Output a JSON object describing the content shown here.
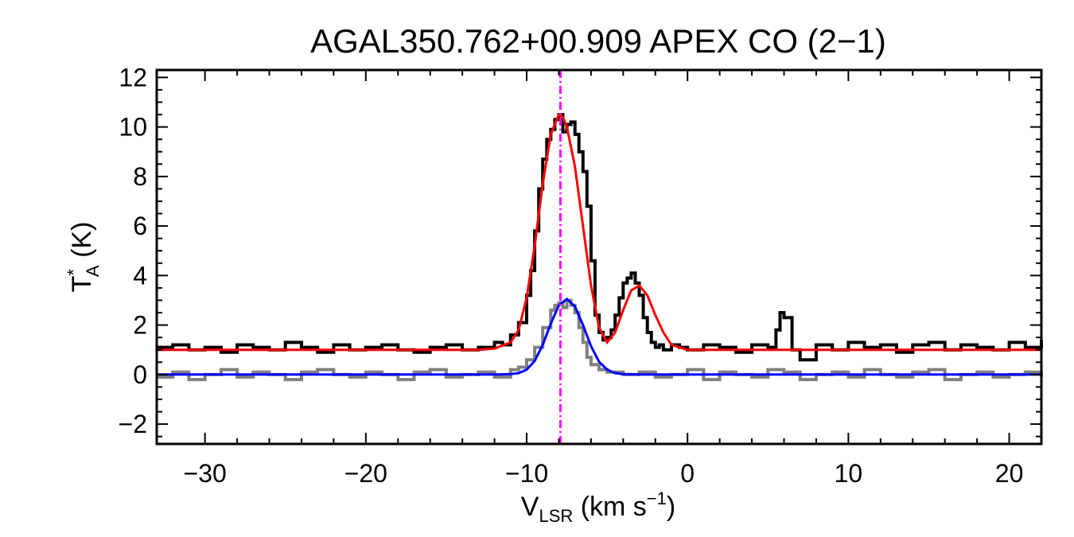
{
  "chart_data": {
    "type": "line",
    "title": "AGAL350.762+00.909  APEX CO (2−1)",
    "xlabel": {
      "main": "V",
      "sub": "LSR",
      "units": " (km s",
      "sup": "−1",
      "close": ")"
    },
    "ylabel": {
      "main": "T",
      "sup": "*",
      "sub": "A",
      "units": " (K)"
    },
    "xlim": [
      -33,
      22
    ],
    "ylim": [
      -2.8,
      12.3
    ],
    "xticks": [
      -30,
      -20,
      -10,
      0,
      10,
      20
    ],
    "xtick_labels": [
      "−30",
      "−20",
      "−10",
      "0",
      "10",
      "20"
    ],
    "yticks": [
      -2,
      0,
      2,
      4,
      6,
      8,
      10,
      12
    ],
    "ytick_labels": [
      "−2",
      "0",
      "2",
      "4",
      "6",
      "8",
      "10",
      "12"
    ],
    "grid": false,
    "vline": {
      "x": -7.9,
      "color": "#ff00ff",
      "style": "dash-dot"
    },
    "series": [
      {
        "kind": "observed-spectrum-offset",
        "color": "#000000",
        "style": "steps",
        "x": [
          -33,
          -32,
          -31,
          -30,
          -29,
          -28,
          -27,
          -26,
          -25,
          -24,
          -23,
          -22,
          -21,
          -20,
          -19,
          -18,
          -17,
          -16,
          -15,
          -14,
          -13,
          -12,
          -11.5,
          -11,
          -10.5,
          -10,
          -9.75,
          -9.5,
          -9.25,
          -9,
          -8.75,
          -8.5,
          -8.25,
          -8,
          -7.75,
          -7.5,
          -7.25,
          -7,
          -6.75,
          -6.5,
          -6.25,
          -6,
          -5.75,
          -5.5,
          -5.25,
          -5,
          -4.75,
          -4.5,
          -4.25,
          -4,
          -3.75,
          -3.5,
          -3.25,
          -3,
          -2.75,
          -2.5,
          -2.25,
          -2,
          -1.75,
          -1.5,
          -1,
          -0.5,
          0,
          1,
          2,
          3,
          4,
          5,
          5.5,
          5.75,
          6,
          6.5,
          7,
          8,
          9,
          10,
          11,
          12,
          13,
          14,
          15,
          16,
          17,
          18,
          19,
          20,
          21,
          22
        ],
        "y": [
          1.1,
          1.2,
          1.0,
          1.1,
          0.9,
          1.2,
          1.1,
          1.0,
          1.3,
          1.1,
          0.9,
          1.2,
          1.0,
          1.1,
          1.2,
          1.0,
          0.9,
          1.1,
          1.2,
          1.0,
          1.1,
          1.3,
          1.2,
          1.6,
          2.1,
          3.2,
          4.2,
          5.8,
          7.5,
          8.7,
          9.5,
          9.9,
          10.3,
          10.5,
          9.8,
          10.1,
          10.2,
          9.7,
          9.0,
          8.2,
          6.8,
          4.6,
          2.4,
          1.7,
          1.4,
          1.5,
          1.8,
          2.4,
          3.1,
          3.7,
          3.9,
          4.1,
          3.7,
          3.2,
          2.3,
          1.7,
          1.3,
          1.1,
          1.2,
          1.0,
          1.2,
          1.1,
          1.0,
          1.2,
          1.1,
          0.9,
          1.2,
          1.1,
          1.8,
          2.5,
          2.3,
          1.0,
          0.6,
          1.2,
          1.0,
          1.3,
          1.1,
          1.2,
          0.9,
          1.2,
          1.3,
          1.0,
          1.2,
          1.1,
          1.0,
          1.3,
          1.1,
          1.4
        ]
      },
      {
        "kind": "observed-spectrum",
        "color": "#808080",
        "style": "steps",
        "x": [
          -33,
          -32,
          -31,
          -30,
          -29,
          -28,
          -27,
          -26,
          -25,
          -24,
          -23,
          -22,
          -21,
          -20,
          -19,
          -18,
          -17,
          -16,
          -15,
          -14,
          -13,
          -12,
          -11,
          -10.5,
          -10,
          -9.5,
          -9,
          -8.5,
          -8.25,
          -8,
          -7.75,
          -7.5,
          -7.25,
          -7,
          -6.75,
          -6.5,
          -6.25,
          -6,
          -5.5,
          -5,
          -4,
          -3,
          -2,
          -1,
          0,
          1,
          2,
          3,
          4,
          5,
          6,
          7,
          8,
          9,
          10,
          11,
          12,
          13,
          14,
          15,
          16,
          17,
          18,
          19,
          20,
          21,
          22
        ],
        "y": [
          -0.1,
          0.1,
          -0.2,
          0.0,
          0.2,
          -0.1,
          0.1,
          0.0,
          -0.2,
          0.1,
          0.2,
          0.0,
          -0.1,
          0.1,
          0.0,
          -0.2,
          0.1,
          0.2,
          -0.1,
          0.0,
          0.1,
          -0.1,
          0.2,
          0.3,
          0.6,
          1.1,
          1.9,
          2.6,
          2.8,
          2.9,
          2.7,
          3.0,
          2.8,
          2.5,
          1.9,
          1.3,
          0.7,
          0.4,
          0.2,
          0.1,
          0.0,
          0.1,
          -0.1,
          0.0,
          0.2,
          -0.2,
          0.1,
          0.0,
          -0.1,
          0.2,
          0.1,
          -0.2,
          0.0,
          0.1,
          -0.1,
          0.2,
          0.0,
          -0.1,
          0.1,
          0.2,
          -0.2,
          0.0,
          0.1,
          -0.1,
          0.0,
          0.1,
          -0.1
        ]
      },
      {
        "kind": "gaussian-fit-two-component",
        "color": "#ff0000",
        "style": "line",
        "x": [
          -33,
          -22,
          -15,
          -13,
          -12,
          -11,
          -10.5,
          -10,
          -9.5,
          -9,
          -8.5,
          -8,
          -7.75,
          -7.5,
          -7,
          -6.5,
          -6,
          -5.5,
          -5,
          -4.5,
          -4,
          -3.5,
          -3,
          -2.5,
          -2,
          -1.5,
          -1,
          0,
          5,
          10,
          22
        ],
        "y": [
          1.0,
          1.0,
          1.0,
          1.0,
          1.05,
          1.3,
          1.8,
          3.1,
          5.2,
          7.7,
          9.7,
          10.5,
          10.4,
          10.0,
          8.4,
          6.0,
          3.6,
          1.9,
          1.3,
          1.7,
          2.6,
          3.4,
          3.6,
          3.2,
          2.4,
          1.7,
          1.2,
          1.0,
          1.0,
          1.0,
          1.0
        ]
      },
      {
        "kind": "gaussian-fit",
        "color": "#0000ff",
        "style": "line",
        "x": [
          -33,
          -20,
          -12,
          -11,
          -10.5,
          -10,
          -9.5,
          -9,
          -8.5,
          -8,
          -7.5,
          -7,
          -6.5,
          -6,
          -5.5,
          -5,
          -4.5,
          -4,
          -3,
          0,
          10,
          22
        ],
        "y": [
          0.0,
          0.0,
          0.0,
          0.02,
          0.06,
          0.2,
          0.55,
          1.2,
          2.05,
          2.8,
          3.05,
          2.75,
          2.0,
          1.15,
          0.52,
          0.2,
          0.06,
          0.02,
          0.0,
          0.0,
          0.0,
          0.0
        ]
      }
    ]
  }
}
